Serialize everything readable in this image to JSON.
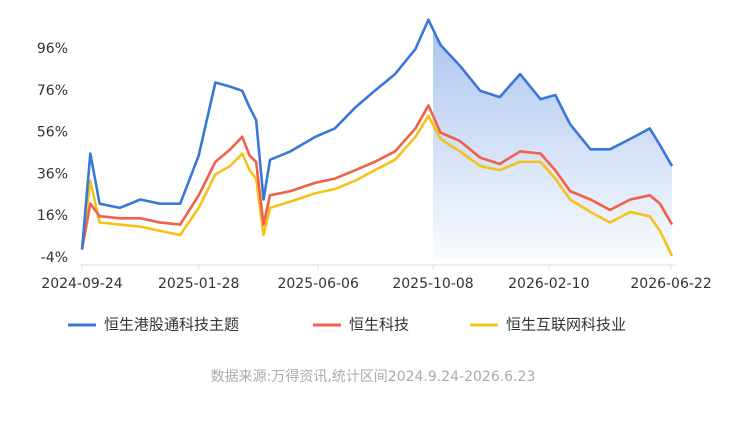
{
  "chart_data": {
    "type": "line",
    "x": [
      "2024-09-24",
      "2024-10-03",
      "2024-10-13",
      "2024-11-04",
      "2024-11-26",
      "2024-12-17",
      "2025-01-08",
      "2025-01-28",
      "2025-02-15",
      "2025-03-03",
      "2025-03-16",
      "2025-03-24",
      "2025-03-31",
      "2025-04-08",
      "2025-04-15",
      "2025-05-07",
      "2025-06-03",
      "2025-06-24",
      "2025-07-16",
      "2025-08-06",
      "2025-08-28",
      "2025-09-19",
      "2025-10-03",
      "2025-10-16",
      "2025-11-06",
      "2025-11-28",
      "2025-12-19",
      "2026-01-10",
      "2026-02-01",
      "2026-02-17",
      "2026-03-05",
      "2026-03-27",
      "2026-04-17",
      "2026-05-09",
      "2026-05-30",
      "2026-06-10",
      "2026-06-23"
    ],
    "series": [
      {
        "name": "恒生港股通科技主题",
        "color": "#3a78d8",
        "values": [
          0,
          46,
          22,
          20,
          24,
          22,
          22,
          45,
          80,
          78,
          76,
          68,
          62,
          24,
          43,
          47,
          54,
          58,
          68,
          76,
          84,
          96,
          110,
          98,
          88,
          76,
          73,
          84,
          72,
          74,
          60,
          48,
          48,
          53,
          58,
          50,
          40
        ]
      },
      {
        "name": "恒生科技",
        "color": "#f0614a",
        "values": [
          0,
          22,
          16,
          15,
          15,
          13,
          12,
          26,
          42,
          48,
          54,
          45,
          42,
          12,
          26,
          28,
          32,
          34,
          38,
          42,
          47,
          58,
          69,
          56,
          52,
          44,
          41,
          47,
          46,
          38,
          28,
          24,
          19,
          24,
          26,
          22,
          12
        ]
      },
      {
        "name": "恒生互联网科技业",
        "color": "#f5c21b",
        "values": [
          0,
          33,
          13,
          12,
          11,
          9,
          7,
          20,
          36,
          40,
          46,
          38,
          34,
          7,
          20,
          23,
          27,
          29,
          33,
          38,
          43,
          54,
          64,
          53,
          47,
          40,
          38,
          42,
          42,
          34,
          24,
          18,
          13,
          18,
          16,
          9,
          -3
        ]
      }
    ],
    "xlim": [
      "2024-09-24",
      "2026-06-23"
    ],
    "xticks": [
      "2024-09-24",
      "2025-01-28",
      "2025-06-06",
      "2025-10-08",
      "2026-02-10",
      "2026-06-22"
    ],
    "ylim": [
      -4,
      113
    ],
    "yticks": [
      {
        "value": -4,
        "label": "-4%"
      },
      {
        "value": 16,
        "label": "16%"
      },
      {
        "value": 36,
        "label": "36%"
      },
      {
        "value": 56,
        "label": "56%"
      },
      {
        "value": 76,
        "label": "76%"
      },
      {
        "value": 96,
        "label": "96%"
      }
    ],
    "shade_from": "2025-10-08",
    "grid": false,
    "legend": "bottom",
    "source": "数据来源:万得资讯,统计区间2024.9.24-2026.6.23"
  }
}
